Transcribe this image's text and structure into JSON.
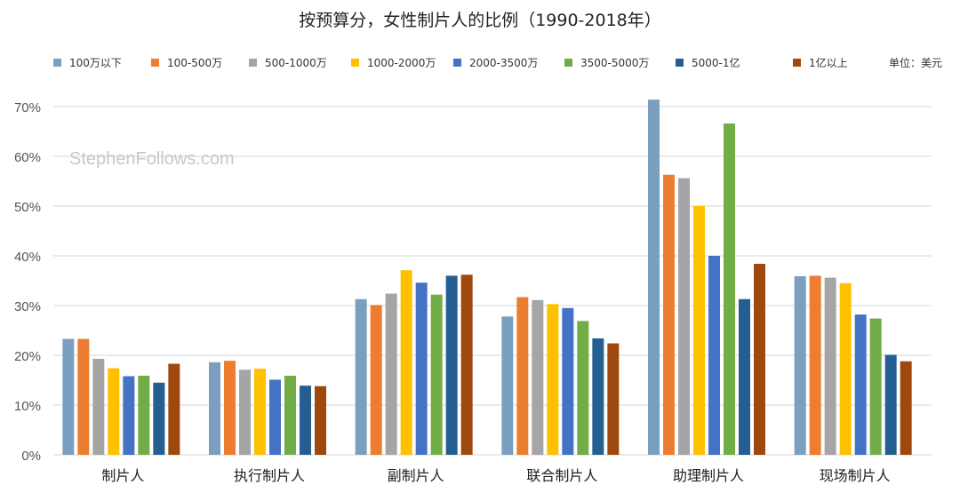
{
  "chart_data": {
    "type": "bar",
    "title": "按预算分，女性制片人的比例（1990-2018年）",
    "unit_label": "单位：美元",
    "watermark": "StephenFollows.com",
    "xlabel": "",
    "ylabel": "",
    "ylim": [
      0,
      70
    ],
    "yticks": [
      "0%",
      "10%",
      "20%",
      "30%",
      "40%",
      "50%",
      "60%",
      "70%"
    ],
    "grid": true,
    "legend_position": "top",
    "categories": [
      "制片人",
      "执行制片人",
      "副制片人",
      "联合制片人",
      "助理制片人",
      "现场制片人"
    ],
    "series": [
      {
        "name": "100万以下",
        "color": "#7a9fbf",
        "values": [
          23.3,
          18.6,
          31.3,
          27.8,
          71.4,
          35.9
        ]
      },
      {
        "name": "100-500万",
        "color": "#ed7d31",
        "values": [
          23.3,
          18.9,
          30.1,
          31.7,
          56.3,
          36.0
        ]
      },
      {
        "name": "500-1000万",
        "color": "#a5a5a5",
        "values": [
          19.3,
          17.1,
          32.4,
          31.1,
          55.6,
          35.6
        ]
      },
      {
        "name": "1000-2000万",
        "color": "#ffc000",
        "values": [
          17.4,
          17.3,
          37.1,
          30.3,
          50.0,
          34.5
        ]
      },
      {
        "name": "2000-3500万",
        "color": "#4472c4",
        "values": [
          15.8,
          15.1,
          34.6,
          29.5,
          40.0,
          28.2
        ]
      },
      {
        "name": "3500-5000万",
        "color": "#70ad47",
        "values": [
          15.9,
          15.9,
          32.2,
          26.9,
          66.6,
          27.4
        ]
      },
      {
        "name": "5000-1亿",
        "color": "#255e91",
        "values": [
          14.5,
          13.9,
          36.0,
          23.4,
          31.3,
          20.1
        ]
      },
      {
        "name": "1亿以上",
        "color": "#9e480e",
        "values": [
          18.3,
          13.8,
          36.2,
          22.4,
          38.4,
          18.8
        ]
      }
    ]
  }
}
